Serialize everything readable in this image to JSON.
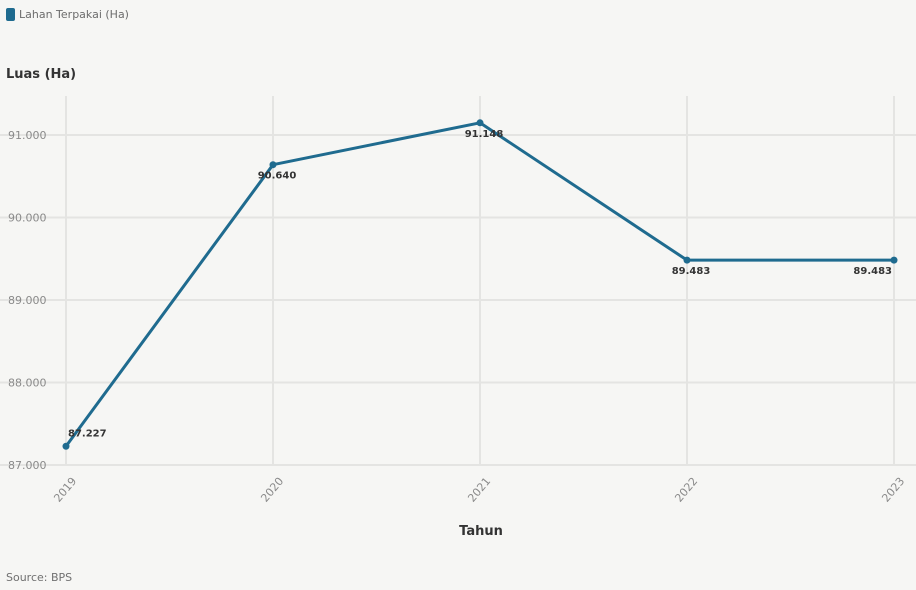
{
  "legend": {
    "label": "Lahan Terpakai (Ha)"
  },
  "source": "Source: BPS",
  "colors": {
    "series": "#1f6b8f",
    "grid": "#e4e4e2",
    "tick_text": "#8a8a8a",
    "label_text": "#333333",
    "background": "#f6f6f4"
  },
  "chart_data": {
    "type": "line",
    "title": "",
    "xlabel": "Tahun",
    "ylabel": "Luas (Ha)",
    "categories": [
      "2019",
      "2020",
      "2021",
      "2022",
      "2023"
    ],
    "series": [
      {
        "name": "Lahan Terpakai (Ha)",
        "values": [
          87227,
          90640,
          91148,
          89483,
          89483
        ],
        "labels": [
          "87.227",
          "90.640",
          "91.148",
          "89.483",
          "89.483"
        ]
      }
    ],
    "yticks": [
      87000,
      88000,
      89000,
      90000,
      91000
    ],
    "ytick_labels": [
      "87.000",
      "88.000",
      "89.000",
      "90.000",
      "91.000"
    ],
    "ylim": [
      87000,
      92000
    ],
    "grid": true,
    "legend_position": "top-left"
  }
}
